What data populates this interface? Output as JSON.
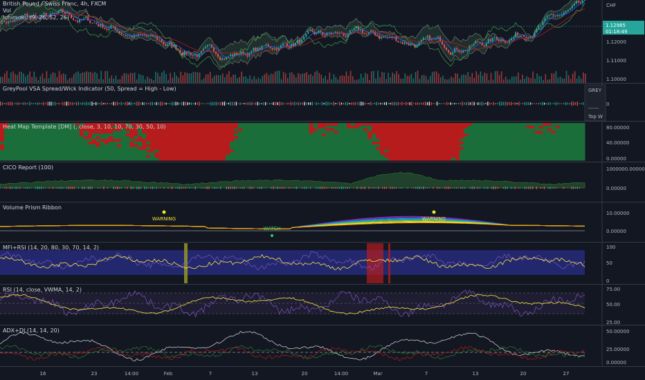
{
  "header": {
    "symbol": "British Pound / Swiss Franc, 4h, FXCM",
    "vol": "Vol",
    "ichimoku": "Ichimoku (9, 26, 52, 26)"
  },
  "price_axis": {
    "currency": "CHF",
    "ticks": [
      "1.12000",
      "1.11000",
      "1.10000"
    ],
    "last_price": "1.12985",
    "countdown": "01:18:49"
  },
  "panels": [
    {
      "id": "vsa",
      "title": "GreyPool VSA Spread/Wick Indicator (50, Spread = High - Low)",
      "ticks": [
        "0"
      ],
      "overlay": [
        "GREY",
        "------",
        "Top W"
      ]
    },
    {
      "id": "heat",
      "title": "Heat Map Template [DM] (, close, 3, 10, 10, 70, 30, 50, 10)",
      "ticks": [
        "80.00000",
        "40.00000",
        "0.00000"
      ]
    },
    {
      "id": "cico",
      "title": "CICO Report (100)",
      "ticks": [
        "1000000.00000",
        "0.00000"
      ]
    },
    {
      "id": "prism",
      "title": "Volume Prism Ribbon",
      "ticks": [
        "10.00000",
        "0.00000"
      ],
      "labels": [
        "WARNING",
        "WATCH",
        "WARNING"
      ]
    },
    {
      "id": "mfi",
      "title": "MFI+RSI (14, 20, 80, 30, 70, 14, 2)",
      "ticks": [
        "100",
        "50",
        "0"
      ]
    },
    {
      "id": "rsi",
      "title": "RSI (14, close, VWMA, 14, 2)",
      "ticks": [
        "75.00",
        "50.00",
        "25.00"
      ]
    },
    {
      "id": "adx",
      "title": "ADX+DI (14, 14, 20)",
      "ticks": [
        "50.00000",
        "25.00000",
        "0.00000"
      ]
    }
  ],
  "time_axis": [
    "16",
    "23",
    "14:00",
    "Feb",
    "7",
    "13",
    "20",
    "14:00",
    "Mar",
    "7",
    "13",
    "20",
    "27"
  ],
  "colors": {
    "background": "#131722",
    "up": "#26a69a",
    "down": "#ef5350",
    "price_badge": "#26a69a",
    "heat_red": "#b71c1c",
    "heat_green": "#1b6e3a",
    "mfi_band": "#2a2f8f",
    "warning": "#f3e52a",
    "watch": "#3bc76a"
  }
}
